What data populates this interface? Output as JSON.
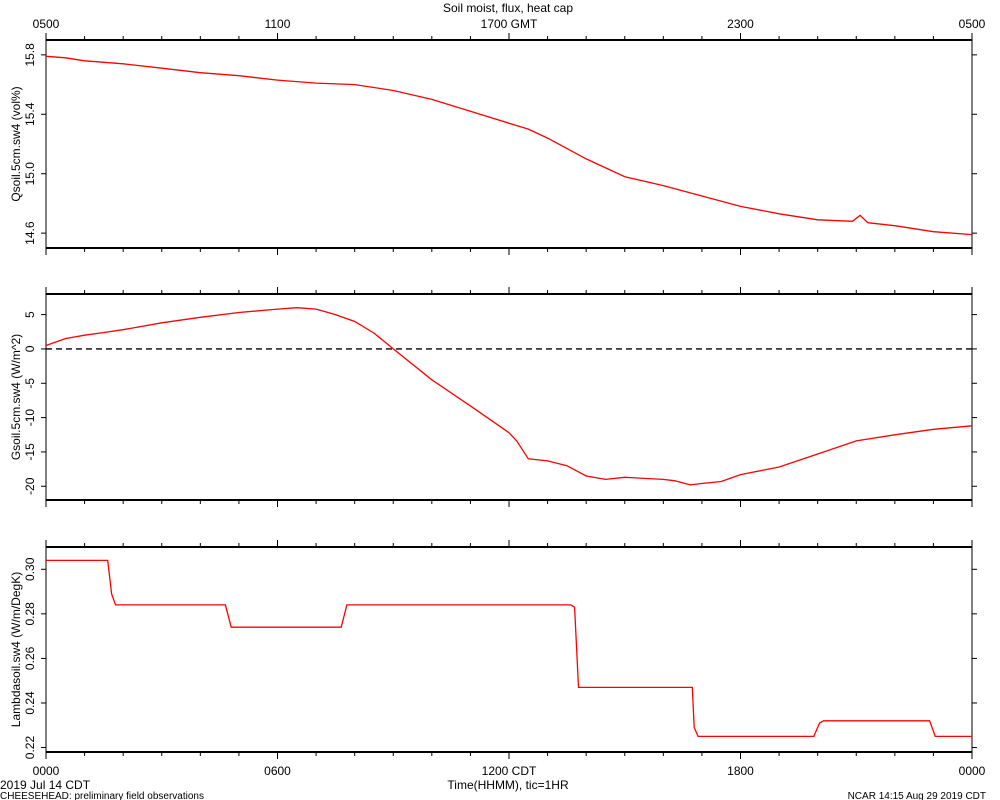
{
  "chart_data": [
    {
      "type": "line",
      "title": "Soil moist, flux, heat cap",
      "ylabel": "Qsoil.5cm.sw4 (vol%)",
      "x_hours": [
        0,
        24
      ],
      "ylim": [
        14.5,
        15.9
      ],
      "yticks": [
        "15.8",
        "15.4",
        "15.0",
        "14.6"
      ],
      "ytick_values": [
        15.8,
        15.4,
        15.0,
        14.6
      ],
      "top_axis_ticks": [
        "0500",
        "1100",
        "1700 GMT",
        "2300",
        "0500"
      ],
      "top_axis_tick_hours": [
        0,
        6,
        12,
        18,
        24
      ],
      "series": [
        {
          "color": "#ff0000",
          "x": [
            0,
            0.5,
            1,
            2,
            3,
            4,
            5,
            6,
            7,
            8,
            9,
            10,
            11,
            12,
            12.5,
            13,
            14,
            15,
            16,
            17,
            18,
            19,
            20,
            20.9,
            21.1,
            21.3,
            22,
            23,
            24
          ],
          "y": [
            15.79,
            15.78,
            15.76,
            15.74,
            15.71,
            15.68,
            15.66,
            15.63,
            15.61,
            15.6,
            15.56,
            15.5,
            15.42,
            15.34,
            15.3,
            15.24,
            15.1,
            14.98,
            14.92,
            14.85,
            14.78,
            14.73,
            14.69,
            14.68,
            14.72,
            14.67,
            14.65,
            14.61,
            14.59
          ]
        }
      ]
    },
    {
      "type": "line",
      "ylabel": "Gsoil.5cm.sw4 (W/m^2)",
      "x_hours": [
        0,
        24
      ],
      "ylim": [
        -22,
        8
      ],
      "yticks": [
        "5",
        "0",
        "-5",
        "-10",
        "-15",
        "-20"
      ],
      "ytick_values": [
        5,
        0,
        -5,
        -10,
        -15,
        -20
      ],
      "zero_line": true,
      "series": [
        {
          "color": "#ff0000",
          "x": [
            0,
            0.5,
            1,
            1.5,
            2,
            3,
            4,
            5,
            6,
            6.5,
            7,
            7.5,
            8,
            8.5,
            9,
            10,
            11,
            12,
            12.2,
            12.5,
            13,
            13.5,
            14,
            14.5,
            15,
            16,
            16.3,
            16.7,
            17,
            17.5,
            18,
            19,
            20,
            21,
            22,
            23,
            24
          ],
          "y": [
            0.5,
            1.5,
            2,
            2.4,
            2.8,
            3.8,
            4.6,
            5.3,
            5.8,
            6,
            5.8,
            5,
            4,
            2.3,
            0,
            -4.5,
            -8.3,
            -12.2,
            -13.4,
            -16,
            -16.3,
            -17,
            -18.5,
            -19,
            -18.7,
            -19,
            -19.2,
            -19.8,
            -19.6,
            -19.3,
            -18.3,
            -17.2,
            -15.3,
            -13.4,
            -12.5,
            -11.7,
            -11.2
          ]
        }
      ]
    },
    {
      "type": "line",
      "ylabel": "Lambdasoil.sw4 (W/m/DegK)",
      "x_hours": [
        0,
        24
      ],
      "ylim": [
        0.218,
        0.31
      ],
      "yticks": [
        "0.30",
        "0.28",
        "0.26",
        "0.24",
        "0.22"
      ],
      "ytick_values": [
        0.3,
        0.28,
        0.26,
        0.24,
        0.22
      ],
      "bottom_axis_ticks": [
        "0000",
        "0600",
        "1200 CDT",
        "1800",
        "0000"
      ],
      "bottom_axis_tick_hours": [
        0,
        6,
        12,
        18,
        24
      ],
      "xlabel": "Time(HHMM), tic=1HR",
      "series": [
        {
          "color": "#ff0000",
          "x": [
            0,
            1.6,
            1.7,
            1.8,
            4.65,
            4.8,
            7.65,
            7.8,
            13.6,
            13.7,
            13.8,
            16.75,
            16.8,
            16.9,
            19.9,
            20.05,
            20.15,
            22.9,
            23.05,
            24
          ],
          "y": [
            0.304,
            0.304,
            0.289,
            0.284,
            0.284,
            0.274,
            0.274,
            0.284,
            0.284,
            0.283,
            0.247,
            0.247,
            0.229,
            0.225,
            0.225,
            0.231,
            0.232,
            0.232,
            0.225,
            0.225
          ]
        }
      ]
    }
  ],
  "footer": {
    "date": "2019 Jul 14 CDT",
    "project": "CHEESEHEAD: preliminary field observations",
    "timestamp": "NCAR 14:15 Aug 29 2019 CDT"
  }
}
